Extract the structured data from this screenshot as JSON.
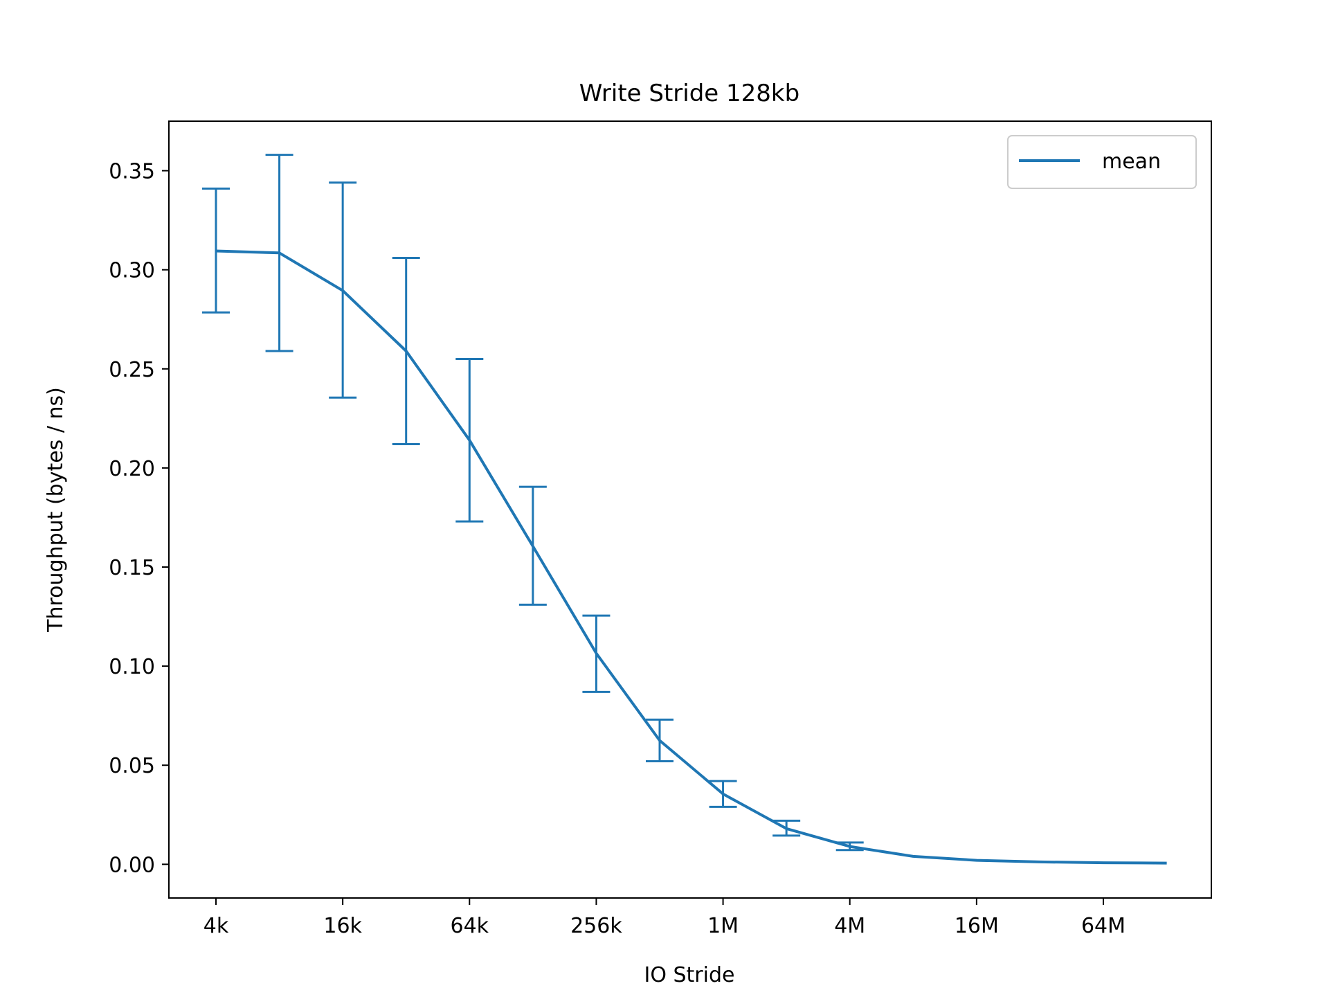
{
  "chart_data": {
    "type": "line",
    "title": "Write Stride 128kb",
    "xlabel": "IO Stride",
    "ylabel": "Throughput (bytes / ns)",
    "x_scale": "log2",
    "x_ticks": [
      "4k",
      "16k",
      "64k",
      "256k",
      "1M",
      "4M",
      "16M",
      "64M"
    ],
    "y_ticks": [
      "0.00",
      "0.05",
      "0.10",
      "0.15",
      "0.20",
      "0.25",
      "0.30",
      "0.35"
    ],
    "ylim": [
      -0.017,
      0.375
    ],
    "grid": false,
    "legend_position": "upper right",
    "series": [
      {
        "name": "mean",
        "color": "#1f77b4",
        "x": [
          "4k",
          "8k",
          "16k",
          "32k",
          "64k",
          "128k",
          "256k",
          "512k",
          "1M",
          "2M",
          "4M",
          "8M",
          "16M",
          "32M",
          "64M",
          "128M"
        ],
        "values": [
          0.3095,
          0.3085,
          0.2895,
          0.259,
          0.214,
          0.1605,
          0.1065,
          0.0625,
          0.0355,
          0.018,
          0.009,
          0.004,
          0.002,
          0.0012,
          0.0008,
          0.0006
        ],
        "error_low": [
          0.2785,
          0.259,
          0.2355,
          0.212,
          0.173,
          0.131,
          0.087,
          0.052,
          0.029,
          0.0145,
          0.0072,
          null,
          null,
          null,
          null,
          null
        ],
        "error_high": [
          0.341,
          0.358,
          0.344,
          0.306,
          0.255,
          0.1905,
          0.1255,
          0.073,
          0.042,
          0.022,
          0.011,
          null,
          null,
          null,
          null,
          null
        ]
      }
    ]
  }
}
